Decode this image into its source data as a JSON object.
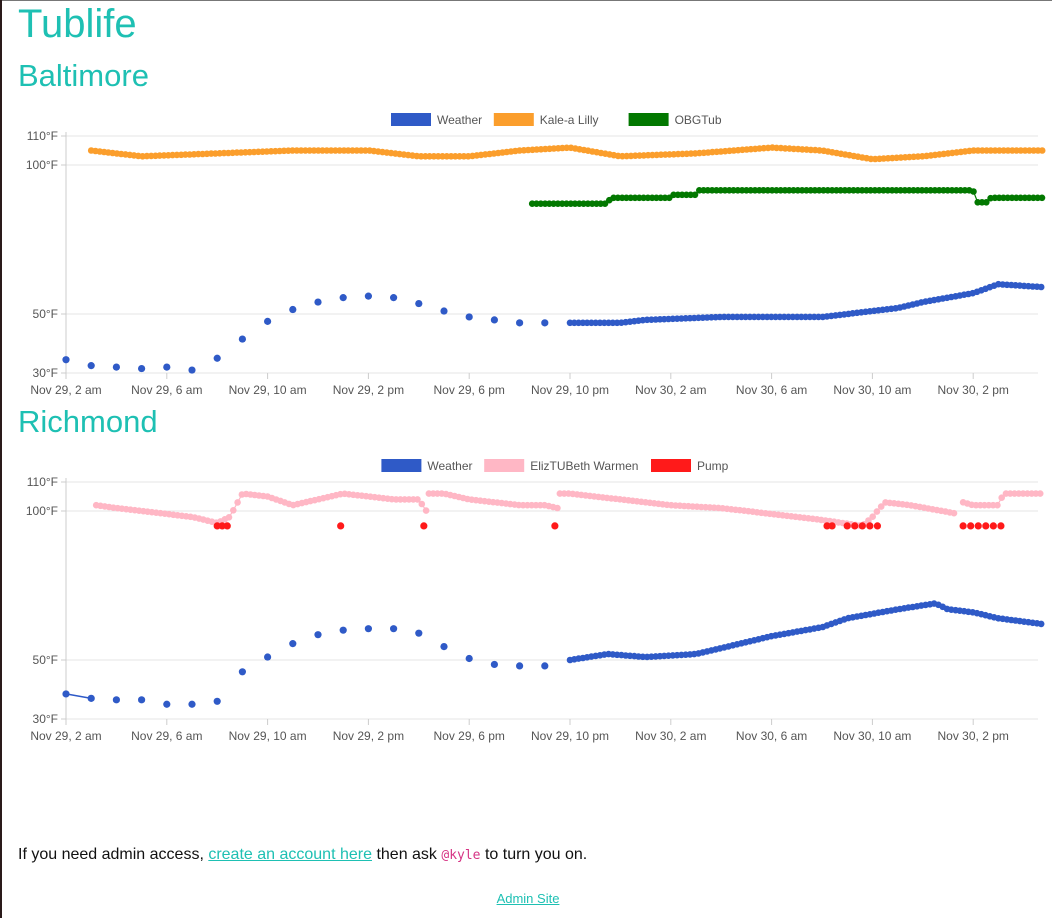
{
  "site_title": "Tublife",
  "footer": {
    "pre": "If you need admin access, ",
    "link": "create an account here",
    "mid": " then ask ",
    "handle": "@kyle",
    "post": " to turn you on.",
    "admin_link": "Admin Site"
  },
  "chart_data": [
    {
      "type": "scatter",
      "title": "Baltimore",
      "x_tick_labels": [
        "Nov 29, 2 am",
        "Nov 29, 6 am",
        "Nov 29, 10 am",
        "Nov 29, 2 pm",
        "Nov 29, 6 pm",
        "Nov 29, 10 pm",
        "Nov 30, 2 am",
        "Nov 30, 6 am",
        "Nov 30, 10 am",
        "Nov 30, 2 pm"
      ],
      "x_range_hours": [
        2,
        40.8
      ],
      "y_ticks": [
        30,
        50,
        100,
        110
      ],
      "y_tick_labels": [
        "30°F",
        "50°F",
        "100°F",
        "110°F"
      ],
      "ylim": [
        30,
        110
      ],
      "legend_position": "top-center",
      "series": [
        {
          "name": "Weather",
          "color": "#2f5ac7",
          "sparse_points": [
            [
              2,
              34.5
            ],
            [
              3,
              32.5
            ],
            [
              4,
              32
            ],
            [
              5,
              31.5
            ],
            [
              6,
              32
            ],
            [
              7,
              31
            ],
            [
              8,
              35
            ],
            [
              9,
              41.5
            ],
            [
              10,
              47.5
            ],
            [
              11,
              51.5
            ],
            [
              12,
              54
            ],
            [
              13,
              55.5
            ],
            [
              14,
              56
            ],
            [
              15,
              55.5
            ],
            [
              16,
              53.5
            ],
            [
              17,
              51
            ],
            [
              18,
              49
            ],
            [
              19,
              48
            ],
            [
              20,
              47
            ],
            [
              21,
              47
            ]
          ],
          "dense_segments": [
            {
              "x": [
                22,
                24,
                25,
                28,
                32,
                35,
                36,
                38,
                39,
                40.8
              ],
              "y": [
                47,
                47,
                48,
                49,
                49,
                52,
                54,
                57,
                60,
                59
              ]
            }
          ]
        },
        {
          "name": "Kale-a Lilly",
          "color": "#fb9e2c",
          "dense_segments": [
            {
              "x": [
                3,
                5,
                8,
                11,
                14,
                16,
                18,
                20,
                22,
                24,
                27,
                30,
                32,
                34,
                36,
                38,
                40.8
              ],
              "y": [
                105,
                103,
                104,
                105,
                105,
                103,
                103,
                105,
                106,
                103,
                104,
                106,
                105,
                102,
                103,
                105,
                105
              ]
            }
          ]
        },
        {
          "name": "OBGTub",
          "color": "#027800",
          "dense_segments": [
            {
              "x": [
                20.5,
                23.5,
                23.6,
                26,
                26.1,
                27,
                27.1,
                38,
                38.1,
                38.6,
                38.7,
                40.8
              ],
              "y": [
                87,
                87,
                89,
                89,
                90,
                90,
                91.5,
                91.5,
                87.5,
                87.5,
                89,
                89
              ]
            }
          ]
        }
      ]
    },
    {
      "type": "scatter",
      "title": "Richmond",
      "x_tick_labels": [
        "Nov 29, 2 am",
        "Nov 29, 6 am",
        "Nov 29, 10 am",
        "Nov 29, 2 pm",
        "Nov 29, 6 pm",
        "Nov 29, 10 pm",
        "Nov 30, 2 am",
        "Nov 30, 6 am",
        "Nov 30, 10 am",
        "Nov 30, 2 pm"
      ],
      "x_range_hours": [
        2,
        40.8
      ],
      "y_ticks": [
        30,
        50,
        100,
        110
      ],
      "y_tick_labels": [
        "30°F",
        "50°F",
        "100°F",
        "110°F"
      ],
      "ylim": [
        30,
        110
      ],
      "legend_position": "top-center",
      "series": [
        {
          "name": "Weather",
          "color": "#2f5ac7",
          "sparse_points": [
            [
              2,
              38.5
            ],
            [
              3,
              37
            ],
            [
              4,
              36.5
            ],
            [
              5,
              36.5
            ],
            [
              6,
              35
            ],
            [
              7,
              35
            ],
            [
              8,
              36
            ],
            [
              9,
              46
            ],
            [
              10,
              51
            ],
            [
              11,
              55.5
            ],
            [
              12,
              58.5
            ],
            [
              13,
              60
            ],
            [
              14,
              60.5
            ],
            [
              15,
              60.5
            ],
            [
              16,
              59
            ],
            [
              17,
              54.5
            ],
            [
              18,
              50.5
            ],
            [
              19,
              48.5
            ],
            [
              20,
              48
            ],
            [
              21,
              48
            ]
          ],
          "sparse_links": [
            [
              0,
              1
            ]
          ],
          "dense_segments": [
            {
              "x": [
                22,
                23.5,
                25,
                27,
                28,
                30,
                32,
                33,
                35,
                36.5,
                37,
                38,
                39,
                40.8
              ],
              "y": [
                50,
                52,
                51,
                52,
                54,
                58,
                61,
                64,
                67,
                69,
                67,
                66,
                64,
                62
              ]
            }
          ]
        },
        {
          "name": "ElizTUBeth Warmen",
          "color": "#ffb7c5",
          "dense_segments": [
            {
              "x": [
                3.2,
                4,
                6,
                7,
                8,
                8.5,
                9,
                10,
                11,
                13,
                15,
                16,
                16.3
              ],
              "y": [
                102,
                101,
                99,
                98,
                96,
                98,
                106,
                105,
                102,
                106,
                104,
                104,
                100
              ]
            },
            {
              "x": [
                16.4,
                17,
                18,
                20,
                21,
                21.5
              ],
              "y": [
                106,
                106,
                104,
                102,
                102,
                101
              ]
            },
            {
              "x": [
                21.6,
                22,
                24,
                26,
                28,
                30,
                32,
                33.6,
                34,
                34.5,
                35.5,
                37.4
              ],
              "y": [
                106,
                106,
                104,
                102,
                101,
                99,
                97,
                95,
                98,
                103,
                102,
                99
              ]
            },
            {
              "x": [
                37.6,
                38,
                39,
                39.2,
                40.8
              ],
              "y": [
                103,
                102,
                102,
                106,
                106
              ]
            }
          ]
        },
        {
          "name": "Pump",
          "color": "#ff1a1a",
          "points": [
            [
              8,
              95
            ],
            [
              8.2,
              95
            ],
            [
              8.4,
              95
            ],
            [
              12.9,
              95
            ],
            [
              16.2,
              95
            ],
            [
              21.4,
              95
            ],
            [
              32.2,
              95
            ],
            [
              32.4,
              95
            ],
            [
              33,
              95
            ],
            [
              33.3,
              95
            ],
            [
              33.6,
              95
            ],
            [
              33.9,
              95
            ],
            [
              34.2,
              95
            ],
            [
              37.6,
              95
            ],
            [
              37.9,
              95
            ],
            [
              38.2,
              95
            ],
            [
              38.5,
              95
            ],
            [
              38.8,
              95
            ],
            [
              39.1,
              95
            ]
          ]
        }
      ]
    }
  ]
}
